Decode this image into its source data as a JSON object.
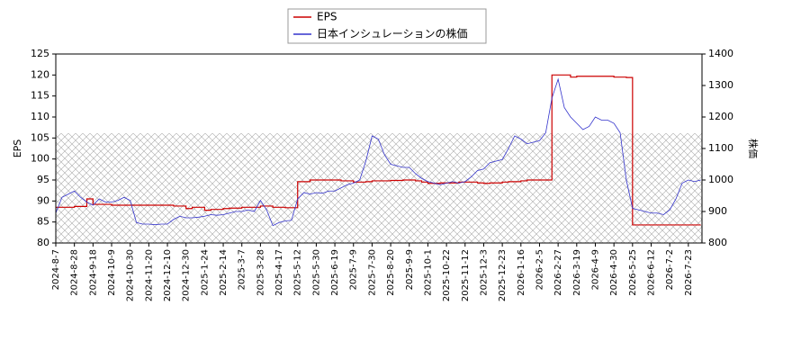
{
  "chart_data": {
    "type": "line",
    "drawstyle": "steps-post",
    "x": [
      "2024-8-7",
      null,
      null,
      "2024-8-28",
      null,
      null,
      "2024-9-18",
      null,
      null,
      "2024-10-9",
      null,
      null,
      "2024-10-30",
      null,
      null,
      "2024-11-20",
      null,
      null,
      "2024-12-10",
      null,
      null,
      "2024-12-30",
      null,
      null,
      "2025-1-24",
      null,
      null,
      "2025-2-14",
      null,
      null,
      "2025-3-7",
      null,
      null,
      "2025-3-28",
      null,
      null,
      "2025-4-17",
      null,
      null,
      "2025-5-12",
      null,
      null,
      "2025-5-30",
      null,
      null,
      "2025-6-19",
      null,
      null,
      "2025-7-9",
      null,
      null,
      "2025-7-30",
      null,
      null,
      "2025-8-20",
      null,
      null,
      "2025-9-9",
      null,
      null,
      "2025-10-1",
      null,
      null,
      "2025-10-22",
      null,
      null,
      "2025-11-12",
      null,
      null,
      "2025-12-3",
      null,
      null,
      "2025-12-23",
      null,
      null,
      "2026-1-16",
      null,
      null,
      "2026-2-5",
      null,
      null,
      "2026-2-27",
      null,
      null,
      "2026-3-19",
      null,
      null,
      "2026-4-9",
      null,
      null,
      "2026-4-30",
      null,
      null,
      "2026-5-25",
      null,
      null,
      "2026-6-12",
      null,
      null,
      "2026-7-2",
      null,
      null,
      "2026-7-23",
      null,
      null
    ],
    "ylabel": "EPS",
    "y2label": "株価",
    "ylim": [
      80,
      125
    ],
    "yticks": [
      80,
      85,
      90,
      95,
      100,
      105,
      110,
      115,
      120,
      125
    ],
    "y2lim": [
      800,
      1400
    ],
    "y2ticks": [
      800,
      900,
      1000,
      1100,
      1200,
      1300,
      1400
    ],
    "legend": "upper center",
    "series": [
      {
        "name": "EPS",
        "color": "#cc0000",
        "values": [
          88.5,
          88.5,
          88.5,
          88.7,
          88.7,
          90.5,
          89.2,
          89.2,
          89.2,
          89,
          89,
          89,
          89,
          89,
          89,
          89,
          89,
          89,
          89,
          88.8,
          88.8,
          88.2,
          88.5,
          88.5,
          87.8,
          88,
          88,
          88.2,
          88.3,
          88.3,
          88.5,
          88.5,
          88.5,
          88.8,
          88.8,
          88.5,
          88.5,
          88.4,
          88.4,
          94.6,
          94.6,
          95,
          95,
          95,
          95,
          95,
          94.8,
          94.8,
          94.5,
          94.5,
          94.6,
          94.8,
          94.8,
          94.8,
          94.9,
          94.9,
          95,
          95,
          94.8,
          94.5,
          94.2,
          94.2,
          94.3,
          94.3,
          94.3,
          94.5,
          94.5,
          94.5,
          94.3,
          94.2,
          94.3,
          94.3,
          94.5,
          94.6,
          94.6,
          94.8,
          95,
          95,
          95,
          95,
          120,
          120,
          120,
          119.5,
          119.7,
          119.7,
          119.7,
          119.7,
          119.7,
          119.7,
          119.5,
          119.5,
          119.4,
          84.3,
          84.3,
          84.3,
          84.3,
          84.3,
          84.3,
          84.3,
          84.3,
          84.3,
          84.3,
          84.3,
          84.3
        ]
      },
      {
        "name": "日本インシュレーションの株価",
        "color": "#3333cc",
        "axis": "y2",
        "values": [
          895,
          945,
          955,
          965,
          945,
          930,
          920,
          940,
          930,
          930,
          935,
          945,
          935,
          865,
          860,
          860,
          858,
          860,
          860,
          875,
          885,
          880,
          880,
          882,
          885,
          890,
          888,
          890,
          895,
          900,
          900,
          905,
          900,
          935,
          905,
          855,
          865,
          870,
          872,
          940,
          960,
          955,
          960,
          958,
          965,
          965,
          975,
          985,
          990,
          1000,
          1060,
          1140,
          1130,
          1080,
          1050,
          1045,
          1040,
          1040,
          1020,
          1005,
          995,
          990,
          985,
          990,
          995,
          990,
          995,
          1010,
          1030,
          1035,
          1055,
          1060,
          1065,
          1100,
          1140,
          1130,
          1115,
          1120,
          1125,
          1150,
          1260,
          1320,
          1230,
          1200,
          1180,
          1160,
          1170,
          1200,
          1190,
          1190,
          1180,
          1150,
          1000,
          910,
          905,
          900,
          895,
          895,
          890,
          905,
          940,
          990,
          1000,
          995,
          1000
        ]
      }
    ]
  }
}
